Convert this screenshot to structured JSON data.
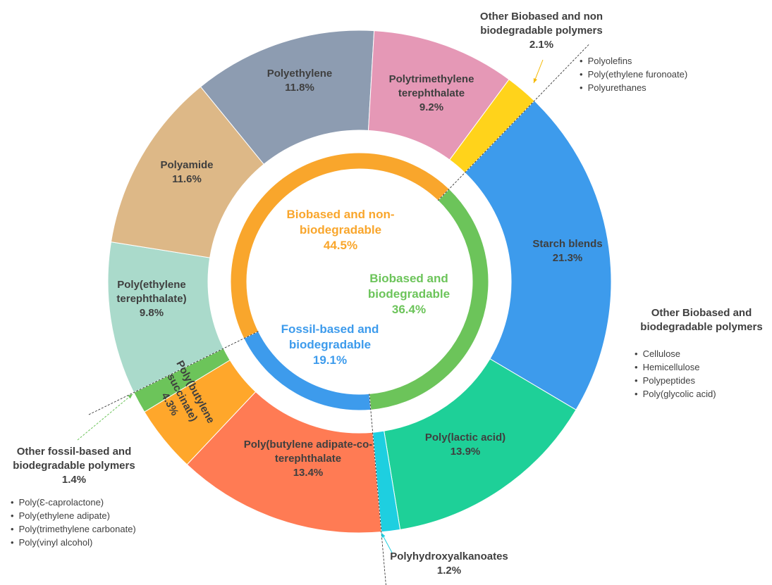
{
  "chart_data": {
    "type": "donut",
    "inner": {
      "categories": [
        "Biobased and biodegradable",
        "Fossil-based and biodegradable",
        "Biobased and non-biodegradable"
      ],
      "values": [
        36.4,
        19.1,
        44.5
      ],
      "value_labels": [
        "36.4%",
        "19.1%",
        "44.5%"
      ],
      "colors": [
        "#6cc45a",
        "#3d9bec",
        "#f9a62c"
      ]
    },
    "outer": {
      "categories": [
        "Starch blends",
        "Poly(lactic acid)",
        "Polyhydroxyalkanoates",
        "Poly(butylene adipate-co-terephthalate",
        "Poly(butylene succinate)",
        "Other fossil-based and biodegradable polymers",
        "Poly(ethylene terephthalate)",
        "Polyamide",
        "Polyethylene",
        "Polytrimethylene terephthalate",
        "Other Biobased and non biodegradable polymers"
      ],
      "values": [
        21.3,
        13.9,
        1.2,
        13.4,
        4.3,
        1.4,
        9.8,
        11.6,
        11.8,
        9.2,
        2.1
      ],
      "value_labels": [
        "21.3%",
        "13.9%",
        "1.2%",
        "13.4%",
        "4.3%",
        "1.4%",
        "9.8%",
        "11.6%",
        "11.8%",
        "9.2%",
        "2.1%"
      ],
      "colors": [
        "#3d9bec",
        "#1ed098",
        "#1ecfe0",
        "#ff7b54",
        "#ffa72b",
        "#6cc45a",
        "#aadacb",
        "#ddb887",
        "#8d9cb1",
        "#e598b6",
        "#ffd31b"
      ],
      "details": [
        null,
        null,
        null,
        null,
        null,
        [
          "Poly(Ɛ-caprolactone)",
          "Poly(ethylene adipate)",
          "Poly(trimethylene carbonate)",
          "Poly(vinyl alcohol)"
        ],
        null,
        null,
        null,
        null,
        [
          "Polyolefins",
          "Poly(ethylene furonoate)",
          "Polyurethanes"
        ]
      ]
    },
    "note": {
      "title": "Other Biobased and biodegradable polymers",
      "items": [
        "Cellulose",
        "Hemicellulose",
        "Polypeptides",
        "Poly(glycolic acid)"
      ]
    }
  }
}
